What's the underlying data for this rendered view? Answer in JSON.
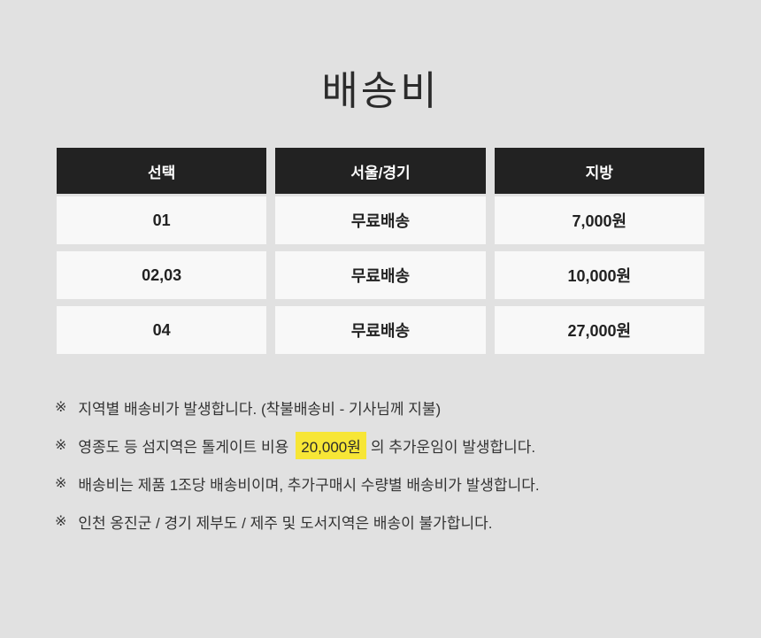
{
  "page": {
    "background_color": "#e1e1e1",
    "accent_highlight_color": "#f7e636",
    "header_bg_color": "#222222",
    "cell_bg_color": "#f8f8f8"
  },
  "title": "배송비",
  "table": {
    "headers": [
      "선택",
      "서울/경기",
      "지방"
    ],
    "rows": [
      [
        "01",
        "무료배송",
        "7,000원"
      ],
      [
        "02,03",
        "무료배송",
        "10,000원"
      ],
      [
        "04",
        "무료배송",
        "27,000원"
      ]
    ]
  },
  "notes": {
    "marker": "※",
    "items": [
      {
        "text": "지역별 배송비가 발생합니다. (착불배송비 - 기사님께 지불)"
      },
      {
        "prefix": "영종도 등 섬지역은 톨게이트 비용",
        "highlight": "20,000원",
        "suffix": "의 추가운임이 발생합니다."
      },
      {
        "text": "배송비는 제품 1조당 배송비이며, 추가구매시 수량별 배송비가 발생합니다."
      },
      {
        "text": "인천 옹진군 / 경기 제부도 / 제주 및 도서지역은 배송이 불가합니다."
      }
    ]
  }
}
